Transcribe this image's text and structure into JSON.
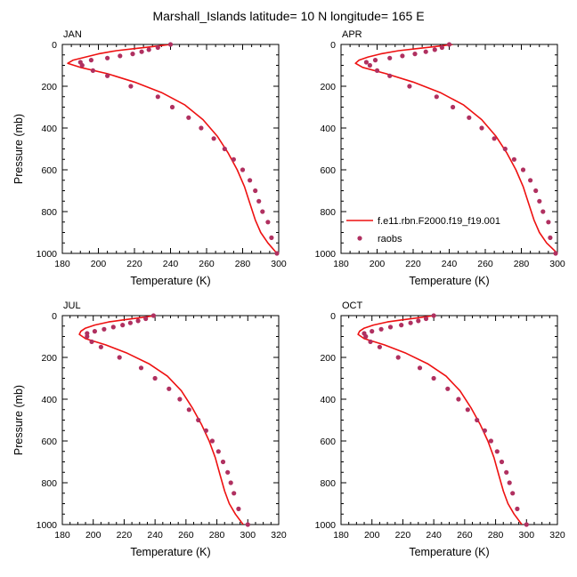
{
  "title": "Marshall_Islands  latitude= 10 N longitude= 165 E",
  "colors": {
    "model": "#ee1111",
    "obs": "#b03060",
    "axes": "#000000"
  },
  "legend": {
    "model_label": "f.e11.rbn.F2000.f19_f19.001",
    "obs_label": "raobs",
    "placement": "inside APR panel, lower-left"
  },
  "chart_data": [
    {
      "type": "line",
      "panel": "JAN",
      "xlabel": "Temperature (K)",
      "ylabel": "Pressure (mb)",
      "xlim": [
        180,
        300
      ],
      "ylim": [
        1000,
        0
      ],
      "y_reversed": true,
      "xticks": [
        "180",
        "200",
        "220",
        "240",
        "260",
        "280",
        "300"
      ],
      "yticks": [
        "0",
        "200",
        "400",
        "600",
        "800",
        "1000"
      ],
      "series": [
        {
          "name": "f.e11.rbn.F2000.f19_f19.001",
          "kind": "line",
          "x": [
            240,
            230,
            220,
            210,
            200,
            193,
            186,
            183,
            190,
            205,
            220,
            235,
            248,
            258,
            266,
            272,
            277,
            281,
            284,
            287,
            290,
            294,
            299
          ],
          "y": [
            0,
            10,
            20,
            30,
            45,
            60,
            75,
            90,
            110,
            140,
            180,
            230,
            290,
            360,
            440,
            520,
            600,
            680,
            760,
            840,
            900,
            950,
            1000
          ]
        },
        {
          "name": "raobs",
          "kind": "scatter",
          "x": [
            240,
            233,
            228,
            224,
            219,
            212,
            205,
            196,
            190,
            191,
            197,
            205,
            218,
            233,
            241,
            250,
            257,
            264,
            270,
            275,
            280,
            284,
            287,
            289,
            291,
            294,
            296,
            299
          ],
          "y": [
            0,
            15,
            25,
            35,
            45,
            55,
            65,
            75,
            85,
            100,
            125,
            150,
            200,
            250,
            300,
            350,
            400,
            450,
            500,
            550,
            600,
            650,
            700,
            750,
            800,
            850,
            925,
            1000
          ]
        }
      ]
    },
    {
      "type": "line",
      "panel": "APR",
      "xlabel": "Temperature (K)",
      "ylabel": "",
      "xlim": [
        180,
        300
      ],
      "ylim": [
        1000,
        0
      ],
      "y_reversed": true,
      "xticks": [
        "180",
        "200",
        "220",
        "240",
        "260",
        "280",
        "300"
      ],
      "yticks": [
        "0",
        "200",
        "400",
        "600",
        "800",
        "1000"
      ],
      "series": [
        {
          "name": "f.e11.rbn.F2000.f19_f19.001",
          "kind": "line",
          "x": [
            242,
            232,
            222,
            212,
            202,
            195,
            190,
            188,
            192,
            205,
            220,
            235,
            248,
            258,
            266,
            272,
            277,
            281,
            284,
            287,
            290,
            294,
            300
          ],
          "y": [
            0,
            10,
            20,
            30,
            45,
            60,
            75,
            90,
            110,
            140,
            180,
            230,
            290,
            360,
            440,
            520,
            600,
            680,
            760,
            840,
            900,
            950,
            1000
          ]
        },
        {
          "name": "raobs",
          "kind": "scatter",
          "x": [
            240,
            236,
            232,
            227,
            221,
            214,
            207,
            199,
            194,
            196,
            200,
            207,
            218,
            233,
            242,
            251,
            258,
            265,
            271,
            276,
            281,
            285,
            288,
            290,
            292,
            295,
            296,
            299
          ],
          "y": [
            0,
            15,
            25,
            35,
            45,
            55,
            65,
            75,
            85,
            100,
            125,
            150,
            200,
            250,
            300,
            350,
            400,
            450,
            500,
            550,
            600,
            650,
            700,
            750,
            800,
            850,
            925,
            1000
          ]
        }
      ]
    },
    {
      "type": "line",
      "panel": "JUL",
      "xlabel": "Temperature (K)",
      "ylabel": "Pressure (mb)",
      "xlim": [
        180,
        320
      ],
      "ylim": [
        1000,
        0
      ],
      "y_reversed": true,
      "xticks": [
        "180",
        "200",
        "220",
        "240",
        "260",
        "280",
        "300",
        "320"
      ],
      "yticks": [
        "0",
        "200",
        "400",
        "600",
        "800",
        "1000"
      ],
      "series": [
        {
          "name": "f.e11.rbn.F2000.f19_f19.001",
          "kind": "line",
          "x": [
            240,
            230,
            220,
            210,
            201,
            195,
            192,
            191,
            195,
            208,
            222,
            236,
            248,
            257,
            264,
            270,
            275,
            279,
            282,
            285,
            288,
            292,
            297
          ],
          "y": [
            0,
            10,
            20,
            30,
            45,
            60,
            75,
            90,
            110,
            140,
            180,
            230,
            290,
            360,
            440,
            520,
            600,
            680,
            760,
            840,
            900,
            950,
            1000
          ]
        },
        {
          "name": "raobs",
          "kind": "scatter",
          "x": [
            239,
            234,
            229,
            224,
            219,
            213,
            207,
            201,
            196,
            196,
            199,
            205,
            217,
            231,
            240,
            249,
            256,
            262,
            268,
            273,
            277,
            281,
            284,
            287,
            289,
            291,
            294,
            300
          ],
          "y": [
            0,
            15,
            25,
            35,
            45,
            55,
            65,
            75,
            85,
            100,
            125,
            150,
            200,
            250,
            300,
            350,
            400,
            450,
            500,
            550,
            600,
            650,
            700,
            750,
            800,
            850,
            925,
            1000
          ]
        }
      ]
    },
    {
      "type": "line",
      "panel": "OCT",
      "xlabel": "Temperature (K)",
      "ylabel": "",
      "xlim": [
        180,
        320
      ],
      "ylim": [
        1000,
        0
      ],
      "y_reversed": true,
      "xticks": [
        "180",
        "200",
        "220",
        "240",
        "260",
        "280",
        "300",
        "320"
      ],
      "yticks": [
        "0",
        "200",
        "400",
        "600",
        "800",
        "1000"
      ],
      "series": [
        {
          "name": "f.e11.rbn.F2000.f19_f19.001",
          "kind": "line",
          "x": [
            240,
            230,
            220,
            210,
            201,
            195,
            192,
            191,
            195,
            208,
            222,
            236,
            248,
            257,
            264,
            270,
            275,
            279,
            282,
            285,
            288,
            292,
            297
          ],
          "y": [
            0,
            10,
            20,
            30,
            45,
            60,
            75,
            90,
            110,
            140,
            180,
            230,
            290,
            360,
            440,
            520,
            600,
            680,
            760,
            840,
            900,
            950,
            1000
          ]
        },
        {
          "name": "raobs",
          "kind": "scatter",
          "x": [
            240,
            235,
            230,
            225,
            219,
            212,
            206,
            200,
            195,
            196,
            199,
            205,
            217,
            231,
            240,
            249,
            256,
            262,
            268,
            273,
            277,
            281,
            284,
            287,
            289,
            291,
            294,
            300
          ],
          "y": [
            0,
            15,
            25,
            35,
            45,
            55,
            65,
            75,
            85,
            100,
            125,
            150,
            200,
            250,
            300,
            350,
            400,
            450,
            500,
            550,
            600,
            650,
            700,
            750,
            800,
            850,
            925,
            1000
          ]
        }
      ]
    }
  ]
}
